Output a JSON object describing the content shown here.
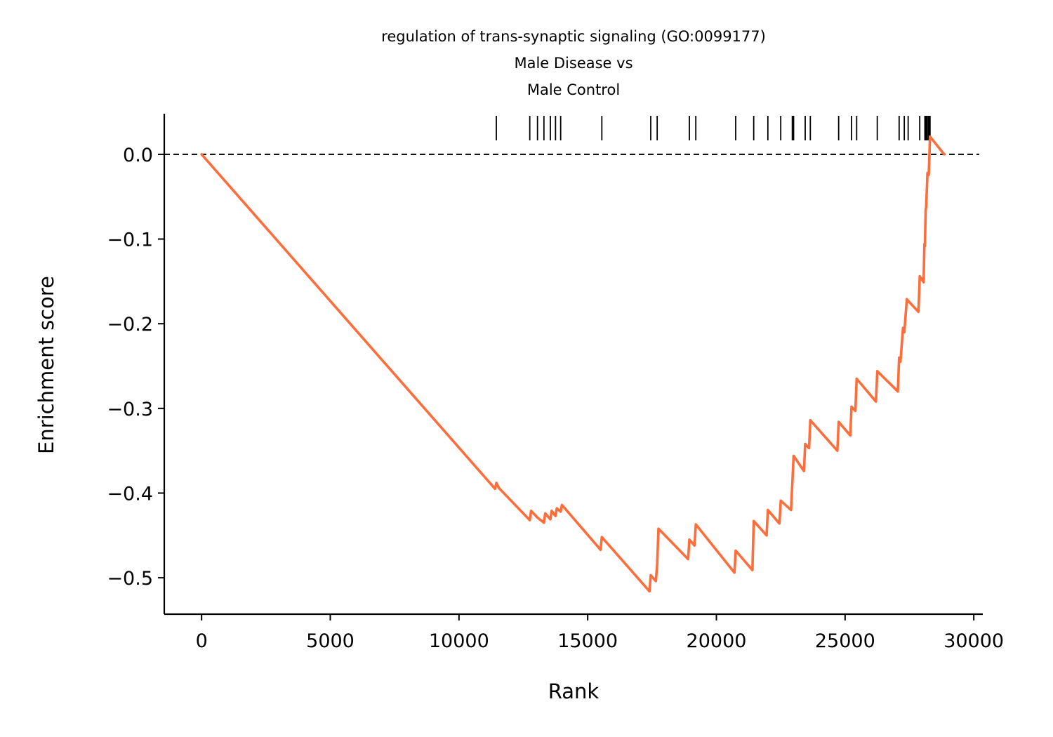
{
  "chart_data": {
    "type": "line",
    "title_lines": [
      "regulation of trans-synaptic signaling (GO:0099177)",
      "Male Disease vs",
      "Male Control"
    ],
    "xlabel": "Rank",
    "ylabel": "Enrichment score",
    "xlim": [
      -1450,
      30350
    ],
    "ylim": [
      -0.543,
      0.048
    ],
    "xticks": [
      0,
      5000,
      10000,
      15000,
      20000,
      25000,
      30000
    ],
    "xtick_labels": [
      "0",
      "5000",
      "10000",
      "15000",
      "20000",
      "25000",
      "30000"
    ],
    "yticks": [
      0.0,
      -0.1,
      -0.2,
      -0.3,
      -0.4,
      -0.5
    ],
    "ytick_labels": [
      "0.0",
      "−0.1",
      "−0.2",
      "−0.3",
      "−0.4",
      "−0.5"
    ],
    "baseline": 0.0,
    "grid": false,
    "line_color": "#ff6d3a",
    "hit_color": "#000000",
    "series": [
      {
        "x": [
          0,
          11400,
          11450,
          11550,
          12750,
          12800,
          13050,
          13300,
          13350,
          13550,
          13600,
          13750,
          13800,
          13950,
          14000,
          15500,
          15550,
          17400,
          17450,
          17650,
          17700,
          17750,
          18900,
          18950,
          19150,
          19200,
          20700,
          20750,
          21400,
          21450,
          21950,
          22000,
          22450,
          22500,
          22900,
          22950,
          23000,
          23400,
          23450,
          23600,
          23650,
          24700,
          24750,
          25200,
          25250,
          25400,
          25450,
          26200,
          26250,
          27050,
          27100,
          27150,
          27250,
          27300,
          27400,
          27450,
          27850,
          27900,
          28050,
          28080,
          28100,
          28130,
          28150,
          28200,
          28250,
          28300,
          28850
        ],
        "y": [
          0.0,
          -0.395,
          -0.388,
          -0.394,
          -0.432,
          -0.421,
          -0.429,
          -0.435,
          -0.424,
          -0.431,
          -0.421,
          -0.427,
          -0.418,
          -0.422,
          -0.414,
          -0.467,
          -0.452,
          -0.516,
          -0.497,
          -0.504,
          -0.483,
          -0.442,
          -0.478,
          -0.455,
          -0.462,
          -0.437,
          -0.494,
          -0.468,
          -0.491,
          -0.433,
          -0.45,
          -0.42,
          -0.436,
          -0.409,
          -0.42,
          -0.388,
          -0.356,
          -0.374,
          -0.342,
          -0.347,
          -0.314,
          -0.35,
          -0.316,
          -0.332,
          -0.298,
          -0.303,
          -0.265,
          -0.292,
          -0.256,
          -0.28,
          -0.24,
          -0.245,
          -0.205,
          -0.21,
          -0.171,
          -0.173,
          -0.186,
          -0.144,
          -0.151,
          -0.106,
          -0.108,
          -0.066,
          -0.062,
          -0.022,
          -0.024,
          0.021,
          0.0
        ]
      }
    ],
    "hits": [
      11450,
      12750,
      13050,
      13300,
      13550,
      13750,
      13950,
      15550,
      17450,
      17700,
      18950,
      19200,
      20750,
      21450,
      22000,
      22500,
      22950,
      23000,
      23450,
      23650,
      24750,
      25250,
      25450,
      26250,
      27100,
      27300,
      27450,
      27900,
      28100,
      28130,
      28150,
      28180,
      28230,
      28260,
      28300
    ]
  }
}
